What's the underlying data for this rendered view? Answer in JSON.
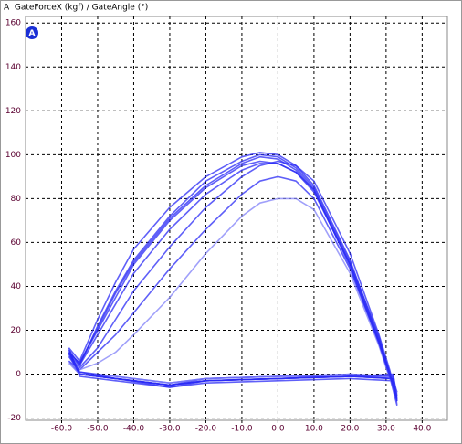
{
  "chart_data": {
    "type": "line",
    "title": "A  GateForceX (kgf) / GateAngle (°)",
    "badge": "A",
    "xlim": [
      -70,
      47
    ],
    "ylim": [
      -21,
      163
    ],
    "xticks": [
      {
        "value": -60,
        "label": "-60.0"
      },
      {
        "value": -50,
        "label": "-50.0"
      },
      {
        "value": -40,
        "label": "-40.0"
      },
      {
        "value": -30,
        "label": "-30.0"
      },
      {
        "value": -20,
        "label": "-20.0"
      },
      {
        "value": -10,
        "label": "-10.0"
      },
      {
        "value": 0,
        "label": "0.0"
      },
      {
        "value": 10,
        "label": "10.0"
      },
      {
        "value": 20,
        "label": "20.0"
      },
      {
        "value": 30,
        "label": "30.0"
      },
      {
        "value": 40,
        "label": "40.0"
      }
    ],
    "yticks": [
      -20,
      0,
      20,
      40,
      60,
      80,
      100,
      120,
      140,
      160
    ],
    "grid": true,
    "x": [
      -58,
      -55,
      -50,
      -45,
      -40,
      -30,
      -20,
      -10,
      -5,
      0,
      5,
      10,
      20,
      28,
      31,
      33,
      32,
      20,
      0,
      -20,
      -30,
      -45,
      -55,
      -58
    ],
    "series": [
      {
        "color": "#2a2af5",
        "values": [
          10,
          5,
          20,
          35,
          50,
          70,
          85,
          95,
          97,
          96,
          92,
          84,
          50,
          15,
          0,
          -10,
          -2,
          -1,
          -2,
          -3,
          -5,
          -2,
          0,
          10
        ]
      },
      {
        "color": "#2a2af5",
        "values": [
          8,
          3,
          12,
          25,
          38,
          58,
          76,
          90,
          95,
          97,
          95,
          88,
          55,
          18,
          2,
          -12,
          -1,
          0,
          -1,
          -2,
          -4,
          -1,
          1,
          8
        ]
      },
      {
        "color": "#2a2af5",
        "values": [
          12,
          6,
          25,
          42,
          57,
          76,
          90,
          99,
          101,
          100,
          95,
          86,
          52,
          16,
          1,
          -8,
          -3,
          -2,
          -3,
          -4,
          -6,
          -3,
          -1,
          12
        ]
      },
      {
        "color": "#2a2af5",
        "values": [
          6,
          2,
          10,
          18,
          28,
          48,
          66,
          82,
          88,
          90,
          88,
          80,
          48,
          14,
          -1,
          -14,
          0,
          -1,
          -1,
          -2,
          -5,
          -2,
          0,
          6
        ]
      },
      {
        "color": "#2a2af5",
        "values": [
          11,
          4,
          22,
          38,
          52,
          72,
          88,
          97,
          100,
          99,
          94,
          85,
          51,
          17,
          0,
          -11,
          -2,
          -1,
          -2,
          -3,
          -5,
          -2,
          0,
          11
        ]
      },
      {
        "color": "#8080f8",
        "values": [
          5,
          2,
          5,
          10,
          18,
          35,
          55,
          72,
          78,
          80,
          80,
          75,
          46,
          13,
          -2,
          -9,
          -1,
          0,
          -1,
          -2,
          -4,
          -1,
          0,
          5
        ]
      },
      {
        "color": "#2a2af5",
        "values": [
          9,
          4,
          18,
          32,
          46,
          66,
          82,
          93,
          96,
          96,
          92,
          83,
          50,
          15,
          0,
          -12,
          -2,
          -1,
          -2,
          -3,
          -6,
          -2,
          0,
          9
        ]
      },
      {
        "color": "#2a2af5",
        "values": [
          10,
          5,
          21,
          37,
          51,
          71,
          86,
          96,
          99,
          98,
          93,
          84,
          49,
          14,
          -1,
          -10,
          -1,
          -1,
          -2,
          -3,
          -5,
          -2,
          1,
          10
        ]
      }
    ]
  }
}
